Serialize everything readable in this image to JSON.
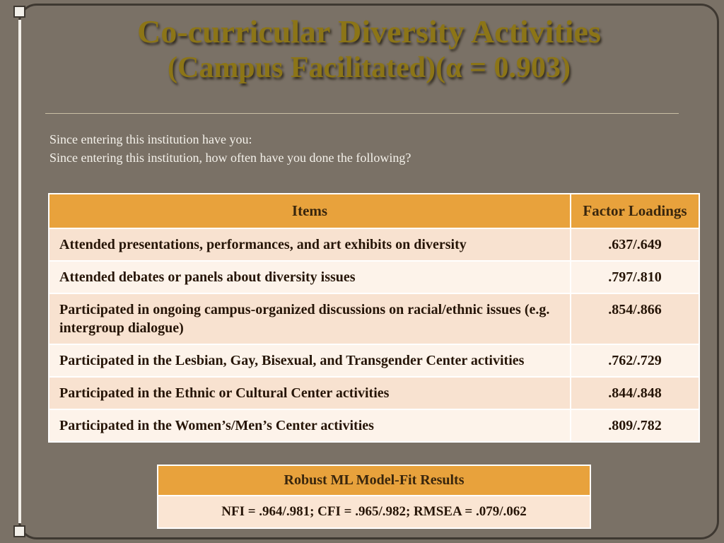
{
  "slide": {
    "title_line1": "Co-curricular Diversity Activities",
    "title_line2": "(Campus Facilitated)(α = 0.903)",
    "intro_line1": "Since entering this institution have you:",
    "intro_line2": "Since entering this institution, how often have you done the following?"
  },
  "items_table": {
    "headers": [
      "Items",
      "Factor Loadings"
    ],
    "rows": [
      {
        "item": "Attended presentations, performances, and art exhibits on diversity",
        "loading": ".637/.649"
      },
      {
        "item": "Attended debates or panels about diversity issues",
        "loading": ".797/.810"
      },
      {
        "item": "Participated in ongoing campus-organized discussions on racial/ethnic issues (e.g. intergroup dialogue)",
        "loading": ".854/.866"
      },
      {
        "item": "Participated in the Lesbian, Gay, Bisexual, and Transgender Center activities",
        "loading": ".762/.729"
      },
      {
        "item": "Participated in the Ethnic or Cultural Center activities",
        "loading": ".844/.848"
      },
      {
        "item": "Participated in the Women’s/Men’s Center activities",
        "loading": ".809/.782"
      }
    ]
  },
  "fit_table": {
    "header": "Robust ML Model-Fit Results",
    "result": "NFI = .964/.981; CFI = .965/.982; RMSEA = .079/.062"
  },
  "colors": {
    "slide_background": "#7A7166",
    "title_gold": "#8C7517",
    "table_header_orange": "#E8A23C",
    "row_dark_peach": "#F8E2D0",
    "row_light_cream": "#FDF3EA",
    "frame_border": "#3E3831"
  }
}
